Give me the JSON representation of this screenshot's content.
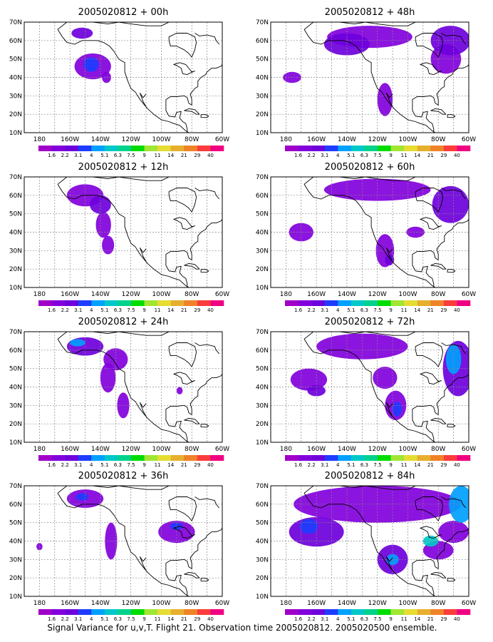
{
  "figure": {
    "caption": "Signal Variance for u,v,T. Flight 21. Observation time 2005020812. 2005020500 ensemble."
  },
  "map_axes": {
    "lat_labels": [
      "10N",
      "20N",
      "30N",
      "40N",
      "50N",
      "60N",
      "70N"
    ],
    "lon_labels": [
      "180",
      "160W",
      "140W",
      "120W",
      "100W",
      "80W",
      "60W"
    ]
  },
  "colorbar": {
    "labels": [
      "1.6",
      "2.2",
      "3.1",
      "4",
      "5.1",
      "6.3",
      "7.5",
      "9",
      "11",
      "14",
      "21",
      "29",
      "40"
    ],
    "colors": [
      "#a000c8",
      "#8200dc",
      "#6e00dc",
      "#1e3cff",
      "#00a0ff",
      "#00c8c8",
      "#00d28c",
      "#00dc00",
      "#a0e632",
      "#e6dc32",
      "#e6af2d",
      "#f08228",
      "#fa3c3c",
      "#f00082"
    ]
  },
  "panels": [
    {
      "title": "2005020812 + 00h",
      "lead_hours": 0
    },
    {
      "title": "2005020812 + 48h",
      "lead_hours": 48
    },
    {
      "title": "2005020812 + 12h",
      "lead_hours": 12
    },
    {
      "title": "2005020812 + 60h",
      "lead_hours": 60
    },
    {
      "title": "2005020812 + 24h",
      "lead_hours": 24
    },
    {
      "title": "2005020812 + 72h",
      "lead_hours": 72
    },
    {
      "title": "2005020812 + 36h",
      "lead_hours": 36
    },
    {
      "title": "2005020812 + 84h",
      "lead_hours": 84
    }
  ],
  "shading_blobs": [
    [
      {
        "lon": -152,
        "lat": 64,
        "rlon": 7,
        "rlat": 3,
        "level": 2
      },
      {
        "lon": -145,
        "lat": 46,
        "rlon": 12,
        "rlat": 7,
        "level": 1
      },
      {
        "lon": -146,
        "lat": 47,
        "rlon": 5,
        "rlat": 4,
        "level": 3
      },
      {
        "lon": -136,
        "lat": 40,
        "rlon": 3,
        "rlat": 3,
        "level": 1
      }
    ],
    [
      {
        "lon": -125,
        "lat": 62,
        "rlon": 28,
        "rlat": 6,
        "level": 1
      },
      {
        "lon": -140,
        "lat": 58,
        "rlon": 15,
        "rlat": 6,
        "level": 2
      },
      {
        "lon": -72,
        "lat": 60,
        "rlon": 13,
        "rlat": 8,
        "level": 2
      },
      {
        "lon": -75,
        "lat": 50,
        "rlon": 10,
        "rlat": 8,
        "level": 1
      },
      {
        "lon": -115,
        "lat": 28,
        "rlon": 5,
        "rlat": 9,
        "level": 1
      },
      {
        "lon": -176,
        "lat": 40,
        "rlon": 6,
        "rlat": 3,
        "level": 1
      }
    ],
    [
      {
        "lon": -150,
        "lat": 60,
        "rlon": 12,
        "rlat": 6,
        "level": 1
      },
      {
        "lon": -140,
        "lat": 55,
        "rlon": 7,
        "rlat": 5,
        "level": 2
      },
      {
        "lon": -138,
        "lat": 44,
        "rlon": 5,
        "rlat": 7,
        "level": 1
      },
      {
        "lon": -135,
        "lat": 33,
        "rlon": 4,
        "rlat": 5,
        "level": 1
      }
    ],
    [
      {
        "lon": -120,
        "lat": 63,
        "rlon": 35,
        "rlat": 6,
        "level": 1
      },
      {
        "lon": -72,
        "lat": 55,
        "rlon": 12,
        "rlat": 10,
        "level": 2
      },
      {
        "lon": -170,
        "lat": 40,
        "rlon": 8,
        "rlat": 5,
        "level": 1
      },
      {
        "lon": -115,
        "lat": 30,
        "rlon": 6,
        "rlat": 9,
        "level": 1
      },
      {
        "lon": -112,
        "lat": 25,
        "rlon": 3,
        "rlat": 3,
        "level": 2
      },
      {
        "lon": -95,
        "lat": 40,
        "rlon": 6,
        "rlat": 3,
        "level": 1
      }
    ],
    [
      {
        "lon": -150,
        "lat": 62,
        "rlon": 12,
        "rlat": 5,
        "level": 2
      },
      {
        "lon": -155,
        "lat": 64,
        "rlon": 5,
        "rlat": 2,
        "level": 4
      },
      {
        "lon": -130,
        "lat": 55,
        "rlon": 8,
        "rlat": 6,
        "level": 1
      },
      {
        "lon": -135,
        "lat": 45,
        "rlon": 5,
        "rlat": 8,
        "level": 1
      },
      {
        "lon": -125,
        "lat": 30,
        "rlon": 4,
        "rlat": 7,
        "level": 1
      },
      {
        "lon": -88,
        "lat": 38,
        "rlon": 2,
        "rlat": 2,
        "level": 1
      }
    ],
    [
      {
        "lon": -130,
        "lat": 62,
        "rlon": 30,
        "rlat": 7,
        "level": 1
      },
      {
        "lon": -165,
        "lat": 44,
        "rlon": 12,
        "rlat": 6,
        "level": 1
      },
      {
        "lon": -160,
        "lat": 38,
        "rlon": 6,
        "rlat": 3,
        "level": 2
      },
      {
        "lon": -67,
        "lat": 50,
        "rlon": 10,
        "rlat": 15,
        "level": 2
      },
      {
        "lon": -70,
        "lat": 55,
        "rlon": 5,
        "rlat": 8,
        "level": 4
      },
      {
        "lon": -108,
        "lat": 30,
        "rlon": 7,
        "rlat": 8,
        "level": 1
      },
      {
        "lon": -107,
        "lat": 28,
        "rlon": 3,
        "rlat": 4,
        "level": 3
      },
      {
        "lon": -115,
        "lat": 45,
        "rlon": 8,
        "rlat": 6,
        "level": 1
      }
    ],
    [
      {
        "lon": -150,
        "lat": 63,
        "rlon": 12,
        "rlat": 5,
        "level": 1
      },
      {
        "lon": -152,
        "lat": 64,
        "rlon": 4,
        "rlat": 2,
        "level": 3
      },
      {
        "lon": -133,
        "lat": 40,
        "rlon": 4,
        "rlat": 10,
        "level": 1
      },
      {
        "lon": -90,
        "lat": 45,
        "rlon": 12,
        "rlat": 6,
        "level": 1
      },
      {
        "lon": -90,
        "lat": 48,
        "rlon": 4,
        "rlat": 2,
        "level": 3
      },
      {
        "lon": -180,
        "lat": 37,
        "rlon": 2,
        "rlat": 2,
        "level": 1
      }
    ],
    [
      {
        "lon": -120,
        "lat": 60,
        "rlon": 55,
        "rlat": 10,
        "level": 1
      },
      {
        "lon": -160,
        "lat": 45,
        "rlon": 18,
        "rlat": 8,
        "level": 2
      },
      {
        "lon": -165,
        "lat": 48,
        "rlon": 6,
        "rlat": 4,
        "level": 3
      },
      {
        "lon": -110,
        "lat": 30,
        "rlon": 10,
        "rlat": 8,
        "level": 2
      },
      {
        "lon": -110,
        "lat": 30,
        "rlon": 4,
        "rlat": 3,
        "level": 4
      },
      {
        "lon": -65,
        "lat": 60,
        "rlon": 8,
        "rlat": 10,
        "level": 4
      },
      {
        "lon": -70,
        "lat": 45,
        "rlon": 10,
        "rlat": 6,
        "level": 1
      },
      {
        "lon": -80,
        "lat": 35,
        "rlon": 10,
        "rlat": 5,
        "level": 1
      },
      {
        "lon": -85,
        "lat": 40,
        "rlon": 5,
        "rlat": 3,
        "level": 5
      }
    ]
  ]
}
